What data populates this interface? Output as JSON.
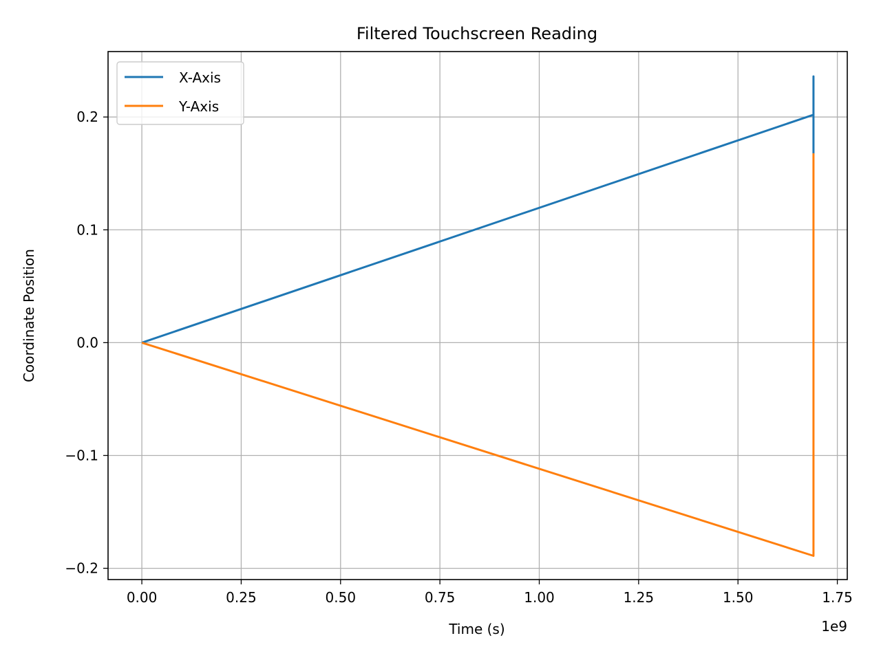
{
  "chart_data": {
    "type": "line",
    "title": "Filtered Touchscreen Reading",
    "xlabel": "Time (s)",
    "ylabel": "Coordinate Position",
    "x_offset_label": "1e9",
    "xlim": [
      -0.085,
      1.775
    ],
    "ylim": [
      -0.21,
      0.258
    ],
    "xticks": [
      0.0,
      0.25,
      0.5,
      0.75,
      1.0,
      1.25,
      1.5,
      1.75
    ],
    "xtick_labels": [
      "0.00",
      "0.25",
      "0.50",
      "0.75",
      "1.00",
      "1.25",
      "1.50",
      "1.75"
    ],
    "yticks": [
      -0.2,
      -0.1,
      0.0,
      0.1,
      0.2
    ],
    "ytick_labels": [
      "−0.2",
      "−0.1",
      "0.0",
      "0.1",
      "0.2"
    ],
    "grid": true,
    "legend_position": "top-left",
    "series": [
      {
        "name": "X-Axis",
        "color": "#1f77b4",
        "points": [
          [
            0.0,
            0.0
          ],
          [
            1.69,
            0.202
          ],
          [
            1.69,
            0.236
          ],
          [
            1.69,
            0.168
          ],
          [
            1.69,
            0.202
          ]
        ]
      },
      {
        "name": "Y-Axis",
        "color": "#ff7f0e",
        "points": [
          [
            0.0,
            0.0
          ],
          [
            1.69,
            -0.189
          ],
          [
            1.69,
            0.167
          ],
          [
            1.69,
            0.0
          ]
        ]
      }
    ]
  }
}
